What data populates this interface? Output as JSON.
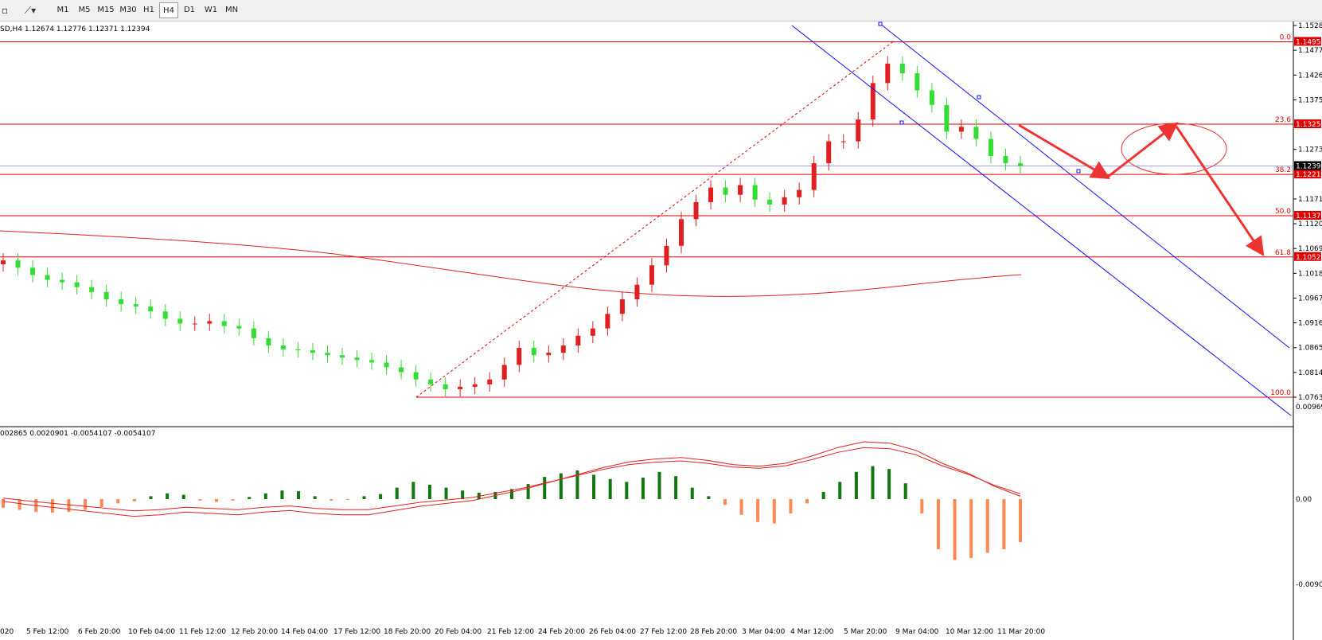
{
  "toolbar": {
    "timeframes": [
      "M1",
      "M5",
      "M15",
      "M30",
      "H1",
      "H4",
      "D1",
      "W1",
      "MN"
    ],
    "active": "H4"
  },
  "chart_data": [
    {
      "type": "candlestick",
      "header": "SD,H4  1.12674 1.12776 1.12371 1.12394",
      "price_axis": [
        "1.15285",
        "1.14775",
        "1.14265",
        "1.13755",
        "1.12735",
        "1.11715",
        "1.11205",
        "1.10695",
        "1.10185",
        "1.09675",
        "1.09165",
        "1.08655",
        "1.08145",
        "1.07635"
      ],
      "ylim": [
        1.075,
        1.153
      ],
      "current_price": "1.12394",
      "fib_levels": [
        {
          "level": "0.0",
          "price": "1.14950"
        },
        {
          "level": "23.6",
          "price": "1.13253"
        },
        {
          "level": "38.2",
          "price": "1.12219"
        },
        {
          "level": "50.0",
          "price": "1.11370"
        },
        {
          "level": "61.8",
          "price": "1.10522"
        },
        {
          "level": "100.0",
          "price": "1.07635"
        }
      ],
      "x_labels": [
        "020",
        "5 Feb 12:00",
        "6 Feb 20:00",
        "10 Feb 04:00",
        "11 Feb 12:00",
        "12 Feb 20:00",
        "14 Feb 04:00",
        "17 Feb 12:00",
        "18 Feb 20:00",
        "20 Feb 04:00",
        "21 Feb 12:00",
        "24 Feb 20:00",
        "26 Feb 04:00",
        "27 Feb 12:00",
        "28 Feb 20:00",
        "3 Mar 04:00",
        "4 Mar 12:00",
        "5 Mar 20:00",
        "9 Mar 04:00",
        "10 Mar 12:00",
        "11 Mar 20:00"
      ],
      "series": [
        {
          "name": "close",
          "values": [
            1.1045,
            1.103,
            1.1015,
            1.1005,
            1.1,
            1.099,
            1.098,
            1.0965,
            1.0955,
            1.095,
            1.094,
            1.0925,
            1.0915,
            1.0915,
            1.092,
            1.091,
            1.0905,
            1.0885,
            1.087,
            1.0862,
            1.086,
            1.0855,
            1.085,
            1.0845,
            1.084,
            1.0835,
            1.0825,
            1.0815,
            1.08,
            1.079,
            1.078,
            1.0785,
            1.079,
            1.08,
            1.083,
            1.0865,
            1.085,
            1.0855,
            1.087,
            1.089,
            1.0905,
            1.0935,
            1.0965,
            1.0995,
            1.1035,
            1.1075,
            1.113,
            1.1165,
            1.1195,
            1.118,
            1.12,
            1.117,
            1.116,
            1.1175,
            1.119,
            1.1245,
            1.129,
            1.129,
            1.1335,
            1.141,
            1.145,
            1.143,
            1.1395,
            1.1365,
            1.131,
            1.132,
            1.1295,
            1.126,
            1.1245,
            1.1239
          ]
        },
        {
          "name": "macd",
          "values": [
            -0.0012,
            -0.0015,
            -0.0018,
            -0.0019,
            -0.0018,
            -0.0015,
            -0.0011,
            -0.0006,
            -0.0003,
            0.0004,
            0.0008,
            0.0006,
            -0.0002,
            -0.0004,
            -0.0002,
            0.0003,
            0.0008,
            0.0012,
            0.0011,
            0.0004,
            -0.0002,
            -0.0001,
            0.0004,
            0.0007,
            0.0016,
            0.0024,
            0.002,
            0.0016,
            0.0012,
            0.0009,
            0.001,
            0.0014,
            0.0021,
            0.0031,
            0.0036,
            0.004,
            0.0034,
            0.0028,
            0.0024,
            0.003,
            0.0038,
            0.0032,
            0.0016,
            0.0004,
            -0.0008,
            -0.0022,
            -0.0032,
            -0.0034,
            -0.002,
            -0.0006,
            0.001,
            0.0024,
            0.0038,
            0.0046,
            0.0042,
            0.0022,
            -0.002,
            -0.007,
            -0.0085,
            -0.0082,
            -0.0075,
            -0.007,
            -0.006
          ]
        },
        {
          "name": "signal",
          "values": [
            -0.0003,
            -0.0008,
            -0.0012,
            -0.0016,
            -0.002,
            -0.0024,
            -0.0022,
            -0.0018,
            -0.002,
            -0.0022,
            -0.0018,
            -0.0016,
            -0.002,
            -0.0022,
            -0.0022,
            -0.0016,
            -0.001,
            -0.0006,
            -0.0002,
            0.0006,
            0.0014,
            0.0024,
            0.0034,
            0.0044,
            0.0052,
            0.0056,
            0.0058,
            0.0054,
            0.0048,
            0.0046,
            0.005,
            0.006,
            0.0072,
            0.008,
            0.0078,
            0.0068,
            0.005,
            0.0036,
            0.0018,
            0.0004
          ]
        }
      ],
      "indicator_header": "002865 0.0020901 -0.0054107 -0.0054107",
      "indicator_axis": [
        "0.009693",
        "0.00",
        "-0.00904"
      ]
    }
  ]
}
